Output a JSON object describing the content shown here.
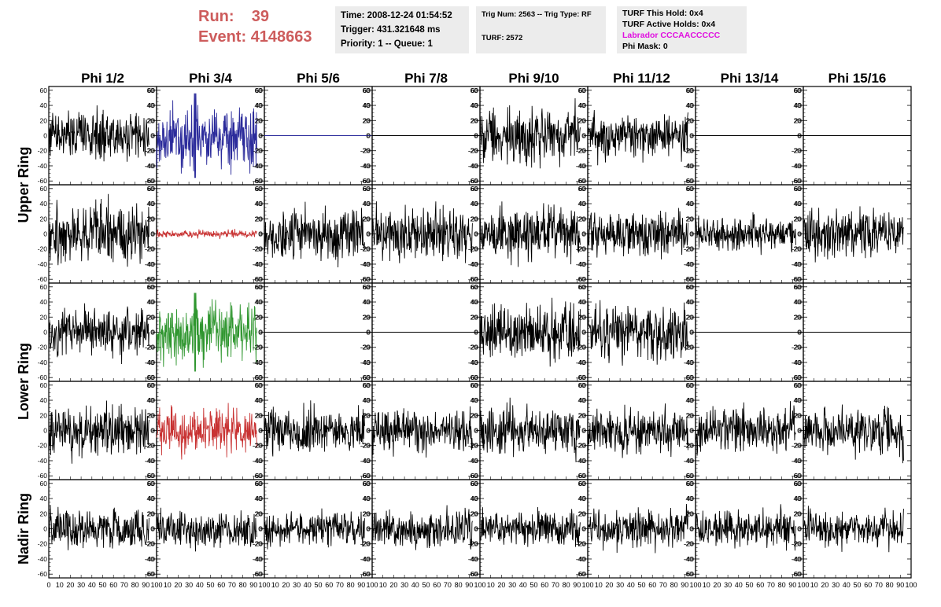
{
  "header": {
    "run_label": "Run:",
    "run_value": "39",
    "event_label": "Event:",
    "event_value": "4148663",
    "time_line": "Time: 2008-12-24 01:54:52",
    "trigger_line": "Trigger: 431.321648 ms",
    "priority_line": "Priority: 1 -- Queue: 1",
    "trig_line": "Trig Num: 2563 -- Trig Type: RF",
    "turf_line": "TURF: 2572",
    "turf_hold_line": "TURF This Hold: 0x4",
    "turf_active_line": "TURF Active Holds: 0x4",
    "labrador_line": "Labrador CCCAACCCCC",
    "phi_mask_line": "Phi Mask: 0"
  },
  "columns": [
    "Phi 1/2",
    "Phi 3/4",
    "Phi 5/6",
    "Phi 7/8",
    "Phi 9/10",
    "Phi 11/12",
    "Phi 13/14",
    "Phi 15/16"
  ],
  "ring_labels": [
    "Upper Ring",
    "Lower Ring",
    "Nadir Ring"
  ],
  "colors": {
    "run_text": "#cd5c5c",
    "labrador_text": "#e010e0",
    "trace_default": "#000000",
    "trace_blue": "#2b2b9b",
    "trace_red": "#c83232",
    "trace_green": "#2f962f",
    "info_bg": "#ececec"
  },
  "chart_data": {
    "type": "line",
    "xlim": [
      0,
      100
    ],
    "ylim": [
      -65,
      65
    ],
    "y_ticks": [
      -60,
      -40,
      -20,
      0,
      20,
      40,
      60
    ],
    "y_tick_labels": [
      "-60",
      "-40",
      "-20",
      "0",
      "20",
      "40",
      "60"
    ],
    "x_ticks": [
      0,
      10,
      20,
      30,
      40,
      50,
      60,
      70,
      80,
      90,
      100
    ],
    "x_tick_labels": [
      "0",
      "10",
      "20",
      "30",
      "40",
      "50",
      "60",
      "70",
      "80",
      "90",
      "100"
    ],
    "trace_x_end": 93,
    "rows": [
      [
        {
          "amp": 16,
          "color": "trace_default",
          "seed": 11
        },
        {
          "amp": 20,
          "color": "trace_blue",
          "seed": 12,
          "spike": 56
        },
        {
          "flat": true,
          "color": "trace_blue"
        },
        {
          "flat": true,
          "color": "trace_default"
        },
        {
          "amp": 18,
          "color": "trace_default",
          "seed": 15
        },
        {
          "amp": 14,
          "color": "trace_default",
          "seed": 16
        },
        {
          "flat": true,
          "color": "trace_default"
        },
        {
          "flat": true,
          "color": "trace_default"
        }
      ],
      [
        {
          "amp": 20,
          "color": "trace_default",
          "seed": 21
        },
        {
          "amp": 2.5,
          "color": "trace_red",
          "seed": 22
        },
        {
          "amp": 16,
          "color": "trace_default",
          "seed": 23
        },
        {
          "amp": 16,
          "color": "trace_default",
          "seed": 24
        },
        {
          "amp": 17,
          "color": "trace_default",
          "seed": 25
        },
        {
          "amp": 14,
          "color": "trace_default",
          "seed": 26
        },
        {
          "amp": 11,
          "color": "trace_default",
          "seed": 27
        },
        {
          "amp": 15,
          "color": "trace_default",
          "seed": 28
        }
      ],
      [
        {
          "amp": 15,
          "color": "trace_default",
          "seed": 31
        },
        {
          "amp": 20,
          "color": "trace_green",
          "seed": 32,
          "spike": 52
        },
        {
          "flat": true,
          "color": "trace_default"
        },
        {
          "flat": true,
          "color": "trace_default"
        },
        {
          "amp": 18,
          "color": "trace_default",
          "seed": 35
        },
        {
          "amp": 17,
          "color": "trace_default",
          "seed": 36
        },
        {
          "flat": true,
          "color": "trace_default"
        },
        {
          "flat": true,
          "color": "trace_default"
        }
      ],
      [
        {
          "amp": 16,
          "color": "trace_default",
          "seed": 41
        },
        {
          "amp": 15,
          "color": "trace_red",
          "seed": 42
        },
        {
          "amp": 15,
          "color": "trace_default",
          "seed": 43
        },
        {
          "amp": 14,
          "color": "trace_default",
          "seed": 44
        },
        {
          "amp": 16,
          "color": "trace_default",
          "seed": 45
        },
        {
          "amp": 14,
          "color": "trace_default",
          "seed": 46
        },
        {
          "amp": 15,
          "color": "trace_default",
          "seed": 47
        },
        {
          "amp": 15,
          "color": "trace_default",
          "seed": 48
        }
      ],
      [
        {
          "amp": 13,
          "color": "trace_default",
          "seed": 51
        },
        {
          "amp": 11,
          "color": "trace_default",
          "seed": 52
        },
        {
          "amp": 11,
          "color": "trace_default",
          "seed": 53
        },
        {
          "amp": 12,
          "color": "trace_default",
          "seed": 54
        },
        {
          "amp": 11,
          "color": "trace_default",
          "seed": 55
        },
        {
          "amp": 12,
          "color": "trace_default",
          "seed": 56
        },
        {
          "amp": 12,
          "color": "trace_default",
          "seed": 57
        },
        {
          "amp": 12,
          "color": "trace_default",
          "seed": 58
        }
      ]
    ]
  }
}
